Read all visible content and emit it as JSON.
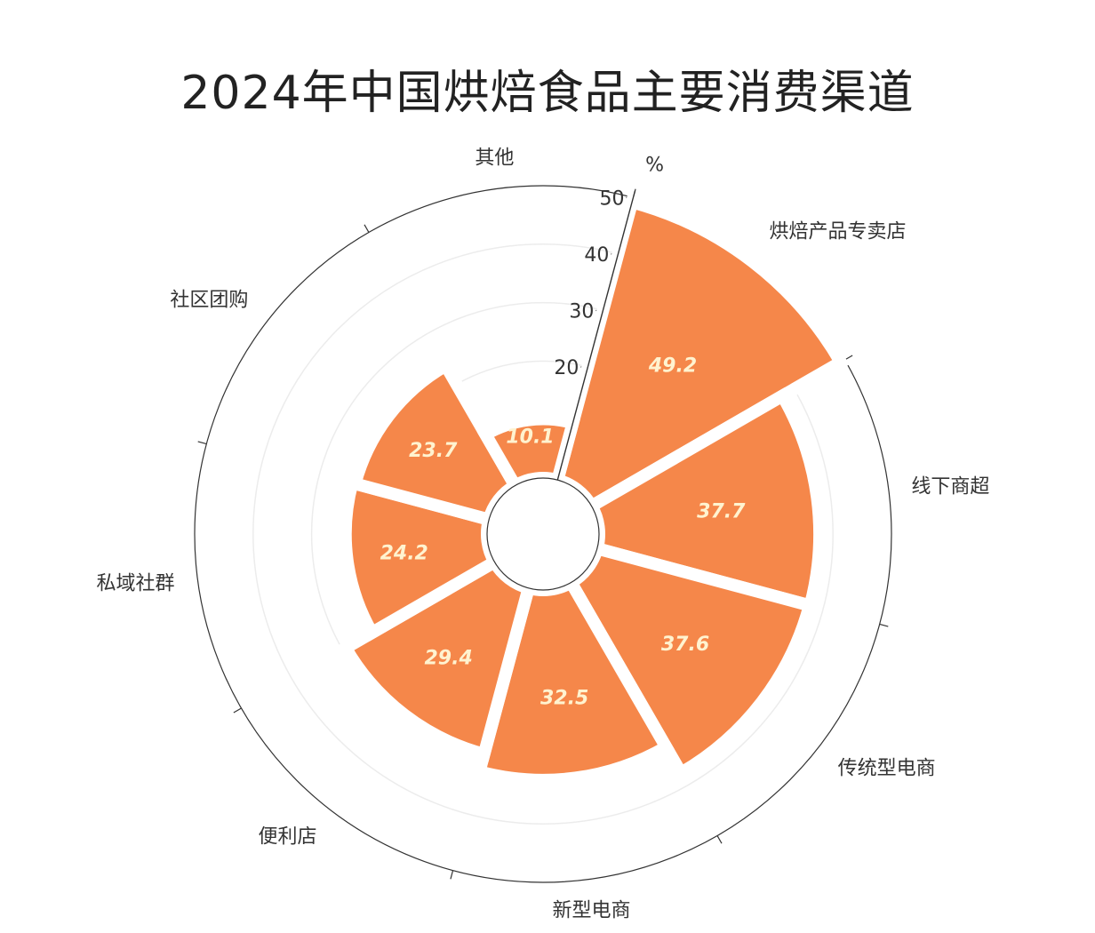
{
  "chart_data": {
    "type": "polar-bar",
    "title": "2024年中国烘焙食品主要消费渠道",
    "radial_unit": "%",
    "radial_range": [
      0,
      50
    ],
    "radial_ticks": [
      0,
      10,
      20,
      30,
      40,
      50
    ],
    "grid": true,
    "categories": [
      "烘焙产品专卖店",
      "线下商超",
      "传统型电商",
      "新型电商",
      "便利店",
      "私域社群",
      "社区团购",
      "其他"
    ],
    "values": [
      49.2,
      37.7,
      37.6,
      32.5,
      29.4,
      24.2,
      23.7,
      10.1
    ],
    "bar_color": "#F5874A",
    "label_color": "#FFF3D0"
  }
}
